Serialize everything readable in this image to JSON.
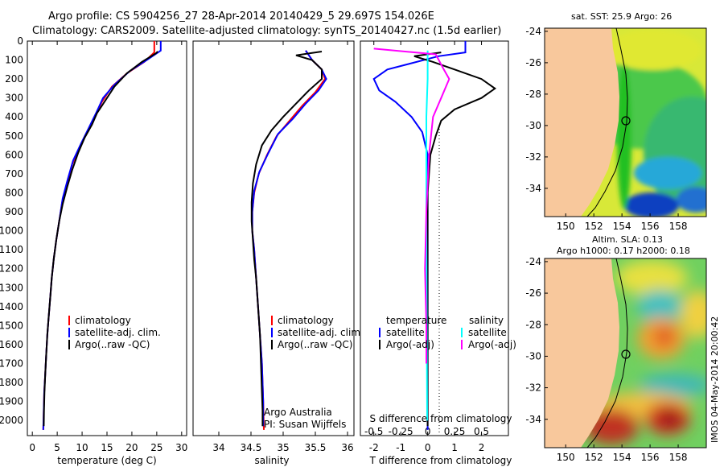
{
  "header": {
    "line1": "Argo profile: CS 5904256_27 28-Apr-2014 20140429_5 29.697S 154.026E",
    "line2": "Climatology: CARS2009. Satellite-adjusted climatology: synTS_20140427.nc (1.5d earlier)"
  },
  "colors": {
    "climatology": "#ff0000",
    "satellite": "#0000ff",
    "argo": "#000000",
    "sal_satellite": "#00ffff",
    "sal_argo": "#ff00ff",
    "land": "#f8c89c"
  },
  "chart_data": [
    {
      "type": "line",
      "id": "temperature",
      "xlabel": "temperature (deg C)",
      "ylabel": "",
      "xlim": [
        -1,
        31
      ],
      "ylim": [
        2080,
        0
      ],
      "xticks": [
        0,
        5,
        10,
        15,
        20,
        25,
        30
      ],
      "yticks": [
        0,
        100,
        200,
        300,
        400,
        500,
        600,
        700,
        800,
        900,
        1000,
        1100,
        1200,
        1300,
        1400,
        1500,
        1600,
        1700,
        1800,
        1900,
        2000
      ],
      "legend": [
        "climatology",
        "satellite-adj. clim.",
        "Argo(..raw -QC)"
      ],
      "series": [
        {
          "name": "climatology",
          "color": "#ff0000",
          "points": [
            [
              24.5,
              0
            ],
            [
              24.5,
              60
            ],
            [
              22.5,
              110
            ],
            [
              19,
              170
            ],
            [
              16,
              240
            ],
            [
              14,
              320
            ],
            [
              12.5,
              400
            ],
            [
              11,
              480
            ],
            [
              9.5,
              560
            ],
            [
              8,
              650
            ],
            [
              7,
              750
            ],
            [
              6,
              850
            ],
            [
              5.4,
              950
            ],
            [
              4.8,
              1050
            ],
            [
              4.3,
              1150
            ],
            [
              3.9,
              1250
            ],
            [
              3.6,
              1350
            ],
            [
              3.3,
              1450
            ],
            [
              3.0,
              1550
            ],
            [
              2.8,
              1650
            ],
            [
              2.6,
              1750
            ],
            [
              2.4,
              1850
            ],
            [
              2.3,
              1950
            ],
            [
              2.2,
              2050
            ]
          ]
        },
        {
          "name": "satellite-adj. clim.",
          "color": "#0000ff",
          "points": [
            [
              25.8,
              0
            ],
            [
              25.8,
              50
            ],
            [
              23,
              100
            ],
            [
              19.5,
              160
            ],
            [
              16.5,
              230
            ],
            [
              14.2,
              300
            ],
            [
              12.8,
              380
            ],
            [
              11.3,
              460
            ],
            [
              9.8,
              540
            ],
            [
              8.2,
              630
            ],
            [
              7.1,
              730
            ],
            [
              6.1,
              830
            ],
            [
              5.4,
              950
            ],
            [
              4.8,
              1050
            ],
            [
              4.3,
              1150
            ],
            [
              3.9,
              1250
            ],
            [
              3.6,
              1350
            ],
            [
              3.3,
              1450
            ],
            [
              3.0,
              1550
            ],
            [
              2.8,
              1650
            ],
            [
              2.6,
              1750
            ],
            [
              2.4,
              1850
            ],
            [
              2.3,
              1950
            ],
            [
              2.2,
              2050
            ]
          ]
        },
        {
          "name": "Argo(..raw -QC)",
          "color": "#000000",
          "points": [
            [
              25.2,
              55
            ],
            [
              24.8,
              65
            ],
            [
              22,
              110
            ],
            [
              19,
              170
            ],
            [
              16.5,
              240
            ],
            [
              14.5,
              320
            ],
            [
              13,
              380
            ],
            [
              12,
              440
            ],
            [
              10.5,
              510
            ],
            [
              9.2,
              590
            ],
            [
              8,
              680
            ],
            [
              7,
              770
            ],
            [
              6.1,
              860
            ],
            [
              5.4,
              950
            ],
            [
              4.8,
              1050
            ],
            [
              4.3,
              1150
            ],
            [
              3.9,
              1250
            ],
            [
              3.6,
              1350
            ],
            [
              3.3,
              1450
            ],
            [
              3.0,
              1550
            ],
            [
              2.8,
              1650
            ],
            [
              2.6,
              1750
            ],
            [
              2.45,
              1850
            ],
            [
              2.35,
              1950
            ],
            [
              2.3,
              2030
            ]
          ]
        }
      ]
    },
    {
      "type": "line",
      "id": "salinity",
      "xlabel": "salinity",
      "ylabel": "",
      "xlim": [
        33.6,
        36.1
      ],
      "ylim": [
        2080,
        0
      ],
      "xticks": [
        34,
        34.5,
        35,
        35.5,
        36
      ],
      "legend": [
        "climatology",
        "satellite-adj. clim.",
        "Argo(..raw -QC)"
      ],
      "annotation": [
        "Argo Australia",
        "PI: Susan Wijffels"
      ],
      "series": [
        {
          "name": "climatology",
          "color": "#ff0000",
          "points": [
            [
              35.35,
              50
            ],
            [
              35.45,
              100
            ],
            [
              35.6,
              150
            ],
            [
              35.65,
              200
            ],
            [
              35.5,
              270
            ],
            [
              35.3,
              340
            ],
            [
              35.1,
              420
            ],
            [
              34.9,
              500
            ],
            [
              34.75,
              600
            ],
            [
              34.62,
              700
            ],
            [
              34.55,
              800
            ],
            [
              34.52,
              900
            ],
            [
              34.52,
              1000
            ],
            [
              34.55,
              1100
            ],
            [
              34.57,
              1200
            ],
            [
              34.59,
              1300
            ],
            [
              34.61,
              1400
            ],
            [
              34.63,
              1500
            ],
            [
              34.65,
              1600
            ],
            [
              34.67,
              1700
            ],
            [
              34.68,
              1800
            ],
            [
              34.69,
              1900
            ],
            [
              34.7,
              2050
            ]
          ]
        },
        {
          "name": "satellite-adj. clim.",
          "color": "#0000ff",
          "points": [
            [
              35.35,
              50
            ],
            [
              35.45,
              100
            ],
            [
              35.6,
              150
            ],
            [
              35.67,
              200
            ],
            [
              35.55,
              260
            ],
            [
              35.35,
              330
            ],
            [
              35.15,
              410
            ],
            [
              34.92,
              490
            ],
            [
              34.77,
              590
            ],
            [
              34.63,
              690
            ],
            [
              34.55,
              790
            ],
            [
              34.52,
              900
            ],
            [
              34.52,
              1000
            ],
            [
              34.55,
              1100
            ],
            [
              34.57,
              1200
            ],
            [
              34.59,
              1300
            ],
            [
              34.61,
              1400
            ],
            [
              34.63,
              1500
            ],
            [
              34.65,
              1600
            ],
            [
              34.67,
              1700
            ],
            [
              34.68,
              1800
            ],
            [
              34.69,
              1900
            ],
            [
              34.69,
              2030
            ]
          ]
        },
        {
          "name": "Argo(..raw -QC)",
          "color": "#000000",
          "points": [
            [
              35.6,
              55
            ],
            [
              35.2,
              75
            ],
            [
              35.45,
              100
            ],
            [
              35.6,
              150
            ],
            [
              35.6,
              200
            ],
            [
              35.4,
              260
            ],
            [
              35.2,
              330
            ],
            [
              35.0,
              400
            ],
            [
              34.82,
              470
            ],
            [
              34.67,
              550
            ],
            [
              34.58,
              650
            ],
            [
              34.53,
              750
            ],
            [
              34.51,
              850
            ],
            [
              34.51,
              950
            ],
            [
              34.53,
              1050
            ],
            [
              34.55,
              1150
            ],
            [
              34.58,
              1250
            ],
            [
              34.6,
              1350
            ],
            [
              34.62,
              1450
            ],
            [
              34.64,
              1550
            ],
            [
              34.65,
              1650
            ],
            [
              34.66,
              1750
            ],
            [
              34.67,
              1850
            ],
            [
              34.68,
              1950
            ],
            [
              34.68,
              2030
            ]
          ]
        }
      ]
    },
    {
      "type": "line",
      "id": "difference",
      "xlabel": "T difference from climatology",
      "xlabel_top": "S difference from climatology",
      "xlim": [
        -2.5,
        3.0
      ],
      "ylim": [
        2080,
        0
      ],
      "xticks": [
        -2,
        -1,
        0,
        1,
        2
      ],
      "xticks_s": [
        "-0.5",
        "-0.25",
        "0",
        "0.25",
        "0.5"
      ],
      "legend_titles": [
        "temperature",
        "salinity"
      ],
      "legend": [
        "satellite",
        "Argo(-adj)",
        "satellite",
        "Argo(-adj)"
      ],
      "series": [
        {
          "name": "temperature satellite",
          "color": "#0000ff",
          "points": [
            [
              1.4,
              0
            ],
            [
              1.4,
              60
            ],
            [
              0.4,
              80
            ],
            [
              -1.5,
              150
            ],
            [
              -2.0,
              200
            ],
            [
              -1.8,
              260
            ],
            [
              -1.2,
              320
            ],
            [
              -0.6,
              400
            ],
            [
              -0.2,
              480
            ],
            [
              0,
              600
            ],
            [
              0,
              2050
            ]
          ]
        },
        {
          "name": "temperature Argo(-adj)",
          "color": "#000000",
          "points": [
            [
              0.5,
              60
            ],
            [
              -0.5,
              80
            ],
            [
              0.2,
              110
            ],
            [
              1.0,
              150
            ],
            [
              2.0,
              200
            ],
            [
              2.5,
              250
            ],
            [
              2.0,
              300
            ],
            [
              1.0,
              360
            ],
            [
              0.5,
              420
            ],
            [
              0.3,
              500
            ],
            [
              0.1,
              600
            ],
            [
              0,
              800
            ],
            [
              0,
              2030
            ]
          ]
        },
        {
          "name": "salinity satellite",
          "color": "#00ffff",
          "points": [
            [
              0,
              50
            ],
            [
              0,
              200
            ],
            [
              -0.05,
              400
            ],
            [
              -0.05,
              1000
            ],
            [
              -0.02,
              2000
            ]
          ]
        },
        {
          "name": "salinity Argo(-adj)",
          "color": "#ff00ff",
          "points": [
            [
              -2.0,
              40
            ],
            [
              0.3,
              70
            ],
            [
              0.6,
              150
            ],
            [
              0.8,
              200
            ],
            [
              0.5,
              300
            ],
            [
              0.2,
              400
            ],
            [
              0.05,
              600
            ],
            [
              -0.05,
              900
            ],
            [
              -0.1,
              1200
            ],
            [
              -0.05,
              1500
            ],
            [
              -0.05,
              1700
            ]
          ]
        }
      ]
    },
    {
      "type": "heatmap",
      "id": "sst-map",
      "title": "sat. SST: 25.9 Argo: 26",
      "xlim": [
        148.5,
        160
      ],
      "ylim": [
        -35.8,
        -23.8
      ],
      "xticks": [
        150,
        152,
        154,
        156,
        158
      ],
      "yticks": [
        -24,
        -26,
        -28,
        -30,
        -32,
        -34
      ],
      "float_position": [
        154.026,
        -29.697
      ]
    },
    {
      "type": "heatmap",
      "id": "sla-map",
      "title_lines": [
        "Altim. SLA: 0.13",
        "Argo h1000: 0.17 h2000: 0.18"
      ],
      "xlim": [
        148.5,
        160
      ],
      "ylim": [
        -35.8,
        -23.8
      ],
      "xticks": [
        150,
        152,
        154,
        156,
        158
      ],
      "yticks": [
        -24,
        -26,
        -28,
        -30,
        -32,
        -34
      ],
      "float_position": [
        154.026,
        -29.697
      ]
    }
  ],
  "stamp": "IMOS 04-May-2014 20:00:42"
}
